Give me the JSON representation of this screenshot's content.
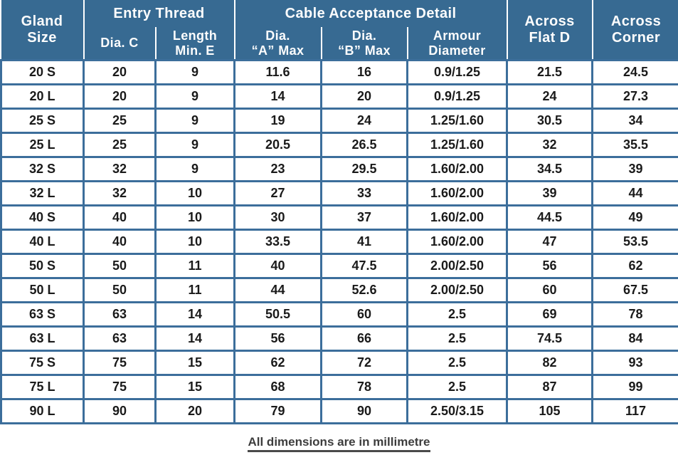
{
  "table": {
    "header": {
      "gland_size": {
        "line1": "Gland",
        "line2": "Size"
      },
      "entry_thread": "Entry Thread",
      "cable_acceptance": "Cable Acceptance Detail",
      "dia_c": "Dia. C",
      "length_min_e": {
        "line1": "Length",
        "line2": "Min. E"
      },
      "dia_a_max": {
        "line1": "Dia.",
        "line2": "“A” Max"
      },
      "dia_b_max": {
        "line1": "Dia.",
        "line2": "“B” Max"
      },
      "armour_diameter": {
        "line1": "Armour",
        "line2": "Diameter"
      },
      "across_flat_d": {
        "line1": "Across",
        "line2": "Flat D"
      },
      "across_corner": {
        "line1": "Across",
        "line2": "Corner"
      }
    },
    "columns": [
      "Gland Size",
      "Dia. C",
      "Length Min. E",
      "Dia. “A” Max",
      "Dia. “B” Max",
      "Armour Diameter",
      "Across Flat D",
      "Across Corner"
    ],
    "rows": [
      [
        "20 S",
        "20",
        "9",
        "11.6",
        "16",
        "0.9/1.25",
        "21.5",
        "24.5"
      ],
      [
        "20 L",
        "20",
        "9",
        "14",
        "20",
        "0.9/1.25",
        "24",
        "27.3"
      ],
      [
        "25 S",
        "25",
        "9",
        "19",
        "24",
        "1.25/1.60",
        "30.5",
        "34"
      ],
      [
        "25 L",
        "25",
        "9",
        "20.5",
        "26.5",
        "1.25/1.60",
        "32",
        "35.5"
      ],
      [
        "32 S",
        "32",
        "9",
        "23",
        "29.5",
        "1.60/2.00",
        "34.5",
        "39"
      ],
      [
        "32 L",
        "32",
        "10",
        "27",
        "33",
        "1.60/2.00",
        "39",
        "44"
      ],
      [
        "40 S",
        "40",
        "10",
        "30",
        "37",
        "1.60/2.00",
        "44.5",
        "49"
      ],
      [
        "40 L",
        "40",
        "10",
        "33.5",
        "41",
        "1.60/2.00",
        "47",
        "53.5"
      ],
      [
        "50 S",
        "50",
        "11",
        "40",
        "47.5",
        "2.00/2.50",
        "56",
        "62"
      ],
      [
        "50 L",
        "50",
        "11",
        "44",
        "52.6",
        "2.00/2.50",
        "60",
        "67.5"
      ],
      [
        "63 S",
        "63",
        "14",
        "50.5",
        "60",
        "2.5",
        "69",
        "78"
      ],
      [
        "63 L",
        "63",
        "14",
        "56",
        "66",
        "2.5",
        "74.5",
        "84"
      ],
      [
        "75 S",
        "75",
        "15",
        "62",
        "72",
        "2.5",
        "82",
        "93"
      ],
      [
        "75 L",
        "75",
        "15",
        "68",
        "78",
        "2.5",
        "87",
        "99"
      ],
      [
        "90 L",
        "90",
        "20",
        "79",
        "90",
        "2.50/3.15",
        "105",
        "117"
      ]
    ]
  },
  "footer": {
    "note": "All dimensions are in millimetre"
  },
  "colors": {
    "header_bg": "#376A92",
    "grid_line": "#3C6E9B",
    "header_text": "#FFFFFF",
    "body_text": "#1A1A1A",
    "footer_text": "#3D3D3D"
  }
}
